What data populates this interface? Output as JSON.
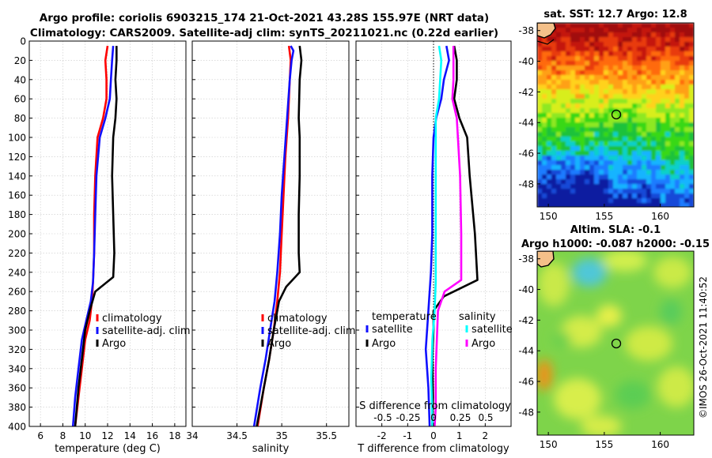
{
  "header": {
    "line1": "Argo profile: coriolis 6903215_174 21-Oct-2021 43.28S 155.97E (NRT data)",
    "line2": "Climatology: CARS2009. Satellite-adj clim: synTS_20211021.nc (0.22d earlier)"
  },
  "copyright": "©IMOS 26-Oct-2021 11:40:52",
  "colors": {
    "argo": "#000000",
    "clim": "#ff0000",
    "sat": "#1010ff",
    "sst_diff": "#1010ff",
    "sal_diff": "#ff00ff",
    "sal_sat": "#00ffff"
  },
  "chart_data": [
    {
      "id": "temperature",
      "type": "line",
      "xlabel": "temperature (deg C)",
      "xlim": [
        5,
        19
      ],
      "xticks": [
        6,
        8,
        10,
        12,
        14,
        16,
        18
      ],
      "ylim": [
        0,
        400
      ],
      "yticks": [
        0,
        20,
        40,
        60,
        80,
        100,
        120,
        140,
        160,
        180,
        200,
        220,
        240,
        260,
        280,
        300,
        320,
        340,
        360,
        380,
        400
      ],
      "legend": [
        "climatology",
        "satellite-adj. clim",
        "Argo"
      ],
      "series": [
        {
          "name": "climatology",
          "color": "red",
          "depth": [
            5,
            20,
            40,
            60,
            80,
            100,
            140,
            180,
            220,
            250,
            270,
            290,
            310,
            340,
            370,
            400
          ],
          "values": [
            12.0,
            11.8,
            11.9,
            11.9,
            11.6,
            11.1,
            10.9,
            10.8,
            10.8,
            10.7,
            10.6,
            10.4,
            10.0,
            9.7,
            9.4,
            9.1
          ]
        },
        {
          "name": "satellite-adj. clim",
          "color": "blue",
          "depth": [
            5,
            20,
            40,
            60,
            80,
            100,
            140,
            180,
            220,
            250,
            270,
            290,
            310,
            340,
            370,
            400
          ],
          "values": [
            12.5,
            12.4,
            12.3,
            12.2,
            11.8,
            11.3,
            11.0,
            10.9,
            10.8,
            10.7,
            10.5,
            10.1,
            9.7,
            9.4,
            9.1,
            8.9
          ]
        },
        {
          "name": "Argo",
          "color": "black",
          "depth": [
            5,
            20,
            40,
            60,
            80,
            100,
            140,
            180,
            220,
            245,
            260,
            280,
            300,
            330,
            360,
            400
          ],
          "values": [
            12.8,
            12.8,
            12.7,
            12.8,
            12.7,
            12.5,
            12.4,
            12.5,
            12.6,
            12.5,
            10.9,
            10.4,
            10.0,
            9.7,
            9.4,
            9.1
          ]
        }
      ]
    },
    {
      "id": "salinity",
      "type": "line",
      "xlabel": "salinity",
      "xlim": [
        34,
        35.75
      ],
      "xticks": [
        34,
        34.5,
        35,
        35.5
      ],
      "xticklabels": [
        "34",
        "34.5",
        "35",
        "35.5"
      ],
      "ylim": [
        0,
        400
      ],
      "legend": [
        "climatology",
        "satellite-adj. clim",
        "Argo"
      ],
      "series": [
        {
          "name": "climatology",
          "color": "red",
          "depth": [
            5,
            20,
            40,
            80,
            120,
            160,
            200,
            240,
            270,
            300,
            330,
            360,
            400
          ],
          "values": [
            35.08,
            35.1,
            35.09,
            35.07,
            35.04,
            35.02,
            35.0,
            34.98,
            34.95,
            34.91,
            34.86,
            34.8,
            34.73
          ]
        },
        {
          "name": "satellite-adj. clim",
          "color": "blue",
          "depth": [
            5,
            10,
            20,
            40,
            80,
            120,
            160,
            200,
            240,
            270,
            300,
            330,
            360,
            400
          ],
          "values": [
            35.1,
            35.13,
            35.11,
            35.09,
            35.06,
            35.03,
            35.0,
            34.98,
            34.95,
            34.92,
            34.87,
            34.82,
            34.76,
            34.69
          ]
        },
        {
          "name": "Argo",
          "color": "black",
          "depth": [
            5,
            20,
            40,
            80,
            100,
            140,
            180,
            220,
            240,
            255,
            270,
            300,
            330,
            360,
            400
          ],
          "values": [
            35.2,
            35.22,
            35.2,
            35.19,
            35.2,
            35.2,
            35.19,
            35.19,
            35.2,
            35.05,
            34.97,
            34.91,
            34.86,
            34.8,
            34.72
          ]
        }
      ]
    },
    {
      "id": "difference",
      "type": "line",
      "xlabel": "T difference from climatology",
      "xlim": [
        -3,
        3
      ],
      "xticks": [
        -2,
        -1,
        0,
        1,
        2
      ],
      "ylim": [
        0,
        400
      ],
      "top_axis_label": "S difference from climatology",
      "top_ticks": [
        "-0.5",
        "-0.25",
        "0",
        "0.25",
        "0.5"
      ],
      "legend": {
        "temperature_title": "temperature",
        "salinity_title": "salinity",
        "items": [
          "satellite",
          "Argo",
          "satellite",
          "Argo"
        ]
      },
      "series": [
        {
          "name": "T satellite",
          "color": "blue",
          "depth": [
            5,
            20,
            40,
            60,
            80,
            100,
            140,
            200,
            240,
            280,
            320,
            360,
            400
          ],
          "values": [
            0.5,
            0.6,
            0.4,
            0.3,
            0.1,
            0.0,
            -0.05,
            -0.05,
            -0.1,
            -0.2,
            -0.3,
            -0.2,
            -0.15
          ]
        },
        {
          "name": "T Argo",
          "color": "black",
          "depth": [
            5,
            20,
            40,
            60,
            80,
            100,
            140,
            200,
            248,
            265,
            280,
            300,
            330,
            370,
            400
          ],
          "values": [
            0.8,
            0.9,
            0.9,
            0.8,
            1.0,
            1.3,
            1.4,
            1.6,
            1.7,
            0.4,
            0.0,
            0.0,
            -0.05,
            -0.02,
            -0.05
          ]
        },
        {
          "name": "S satellite",
          "color": "cyan",
          "depth": [
            5,
            20,
            40,
            60,
            80,
            100,
            140,
            200,
            250,
            280,
            310,
            350,
            400
          ],
          "values": [
            0.05,
            0.07,
            0.06,
            0.05,
            0.02,
            0.02,
            0.02,
            0.02,
            0.02,
            0.01,
            -0.01,
            -0.02,
            -0.01
          ]
        },
        {
          "name": "S Argo",
          "color": "magenta",
          "depth": [
            5,
            20,
            40,
            60,
            80,
            100,
            140,
            200,
            248,
            260,
            280,
            310,
            340,
            380,
            400
          ],
          "values": [
            0.18,
            0.18,
            0.18,
            0.17,
            0.21,
            0.22,
            0.24,
            0.25,
            0.25,
            0.1,
            0.04,
            0.03,
            0.02,
            0.02,
            0.01
          ]
        }
      ]
    },
    {
      "id": "sst-map",
      "type": "heatmap",
      "title": "sat. SST: 12.7 Argo: 12.8",
      "xlim": [
        149,
        163
      ],
      "ylim": [
        -49.5,
        -37.5
      ],
      "xticks": [
        150,
        155,
        160
      ],
      "yticks": [
        -48,
        -46,
        -44,
        -42,
        -40,
        -38
      ],
      "float_position": [
        155.97,
        -43.28
      ]
    },
    {
      "id": "sla-map",
      "type": "heatmap",
      "title_line1": "Altim. SLA: -0.1",
      "title_line2": "Argo h1000: -0.087 h2000: -0.15",
      "xlim": [
        149,
        163
      ],
      "ylim": [
        -49.5,
        -37.5
      ],
      "xticks": [
        150,
        155,
        160
      ],
      "yticks": [
        -48,
        -46,
        -44,
        -42,
        -40,
        -38
      ],
      "float_position": [
        155.97,
        -43.28
      ]
    }
  ]
}
